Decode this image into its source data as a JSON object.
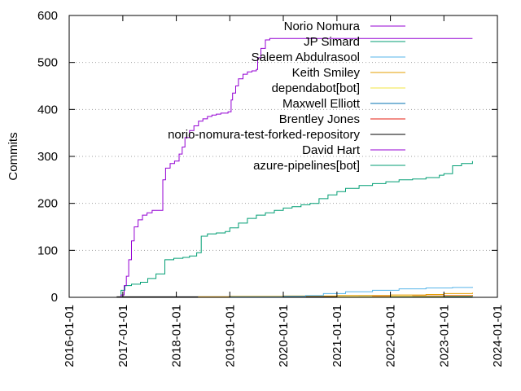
{
  "chart_data": {
    "type": "line",
    "title": "",
    "xlabel": "",
    "ylabel": "Commits",
    "x_scale": "date",
    "xlim": [
      "2016-01-01",
      "2024-01-01"
    ],
    "ylim": [
      0,
      600
    ],
    "x_ticks": [
      "2016-01-01",
      "2017-01-01",
      "2018-01-01",
      "2019-01-01",
      "2020-01-01",
      "2021-01-01",
      "2022-01-01",
      "2023-01-01",
      "2024-01-01"
    ],
    "y_ticks": [
      0,
      100,
      200,
      300,
      400,
      500,
      600
    ],
    "grid": "y-dotted",
    "legend_position": "top-right",
    "series": [
      {
        "name": "Norio Nomura",
        "color": "#9400d3",
        "x": [
          "2016-12-01",
          "2016-12-20",
          "2017-01-10",
          "2017-01-25",
          "2017-02-10",
          "2017-03-01",
          "2017-03-20",
          "2017-04-15",
          "2017-05-15",
          "2017-06-15",
          "2017-07-20",
          "2017-09-20",
          "2017-10-01",
          "2017-10-20",
          "2017-11-20",
          "2017-12-20",
          "2018-01-20",
          "2018-02-10",
          "2018-03-01",
          "2018-04-01",
          "2018-05-01",
          "2018-06-01",
          "2018-07-01",
          "2018-08-01",
          "2018-09-01",
          "2018-10-01",
          "2018-11-01",
          "2018-12-20",
          "2019-01-10",
          "2019-01-20",
          "2019-02-10",
          "2019-03-01",
          "2019-04-01",
          "2019-05-01",
          "2019-06-01",
          "2019-07-01",
          "2019-07-10",
          "2019-08-01",
          "2019-09-01",
          "2019-10-01",
          "2020-01-01",
          "2021-01-01",
          "2022-01-01",
          "2023-01-01",
          "2023-07-15"
        ],
        "y": [
          0,
          5,
          25,
          45,
          80,
          120,
          150,
          165,
          175,
          180,
          185,
          185,
          250,
          275,
          285,
          290,
          305,
          320,
          340,
          355,
          365,
          375,
          380,
          385,
          388,
          390,
          392,
          395,
          420,
          435,
          450,
          465,
          475,
          480,
          482,
          485,
          510,
          530,
          548,
          551,
          551,
          551,
          551,
          551,
          551
        ]
      },
      {
        "name": "JP Simard",
        "color": "#009e73",
        "x": [
          "2016-12-01",
          "2016-12-20",
          "2017-01-15",
          "2017-03-01",
          "2017-05-01",
          "2017-06-20",
          "2017-08-15",
          "2017-10-15",
          "2017-12-15",
          "2018-02-15",
          "2018-04-01",
          "2018-05-20",
          "2018-06-20",
          "2018-08-01",
          "2018-10-01",
          "2018-12-01",
          "2019-01-01",
          "2019-03-01",
          "2019-05-01",
          "2019-07-01",
          "2019-09-01",
          "2019-11-01",
          "2020-01-01",
          "2020-03-01",
          "2020-05-01",
          "2020-07-01",
          "2020-09-01",
          "2020-11-01",
          "2021-01-01",
          "2021-03-01",
          "2021-06-01",
          "2021-09-01",
          "2021-12-01",
          "2022-03-01",
          "2022-06-01",
          "2022-09-01",
          "2022-12-01",
          "2023-01-01",
          "2023-03-01",
          "2023-05-01",
          "2023-07-15"
        ],
        "y": [
          0,
          15,
          25,
          28,
          32,
          40,
          50,
          80,
          83,
          85,
          88,
          95,
          130,
          135,
          137,
          140,
          148,
          158,
          168,
          175,
          180,
          185,
          190,
          193,
          197,
          200,
          210,
          218,
          225,
          232,
          238,
          242,
          246,
          250,
          252,
          255,
          260,
          263,
          280,
          285,
          290
        ]
      },
      {
        "name": "Saleem Abdulrasool",
        "color": "#56b4e9",
        "x": [
          "2018-01-01",
          "2019-01-01",
          "2020-01-01",
          "2020-06-01",
          "2020-10-01",
          "2021-03-01",
          "2021-09-01",
          "2022-03-01",
          "2022-09-01",
          "2023-03-01",
          "2023-07-15"
        ],
        "y": [
          0,
          1,
          2,
          4,
          8,
          12,
          15,
          18,
          20,
          21,
          22
        ]
      },
      {
        "name": "Keith Smiley",
        "color": "#e69f00",
        "x": [
          "2017-01-01",
          "2018-06-01",
          "2019-01-01",
          "2020-01-01",
          "2021-01-01",
          "2022-01-01",
          "2022-09-01",
          "2023-01-01",
          "2023-07-15"
        ],
        "y": [
          0,
          1,
          2,
          3,
          4,
          5,
          6,
          8,
          10
        ]
      },
      {
        "name": "dependabot[bot]",
        "color": "#f0e442",
        "x": [
          "2020-01-01",
          "2021-01-01",
          "2022-01-01",
          "2023-01-01",
          "2023-07-15"
        ],
        "y": [
          0,
          1,
          2,
          3,
          4
        ]
      },
      {
        "name": "Maxwell Elliott",
        "color": "#0072b2",
        "x": [
          "2020-06-01",
          "2021-06-01",
          "2022-06-01",
          "2023-07-15"
        ],
        "y": [
          0,
          1,
          2,
          3
        ]
      },
      {
        "name": "Brentley Jones",
        "color": "#e51e10",
        "x": [
          "2021-01-01",
          "2021-09-01",
          "2022-06-01",
          "2023-01-01",
          "2023-07-15"
        ],
        "y": [
          0,
          2,
          3,
          4,
          5
        ]
      },
      {
        "name": "norio-nomura-test-forked-repository",
        "color": "#000000",
        "x": [
          "2016-11-20",
          "2023-07-15"
        ],
        "y": [
          1,
          1
        ]
      },
      {
        "name": "David Hart",
        "color": "#9400d3",
        "x": [
          "2016-11-20",
          "2023-07-15"
        ],
        "y": [
          0,
          0
        ]
      },
      {
        "name": "azure-pipelines[bot]",
        "color": "#009e73",
        "x": [
          "2016-11-20",
          "2023-07-15"
        ],
        "y": [
          0,
          0
        ]
      }
    ]
  }
}
